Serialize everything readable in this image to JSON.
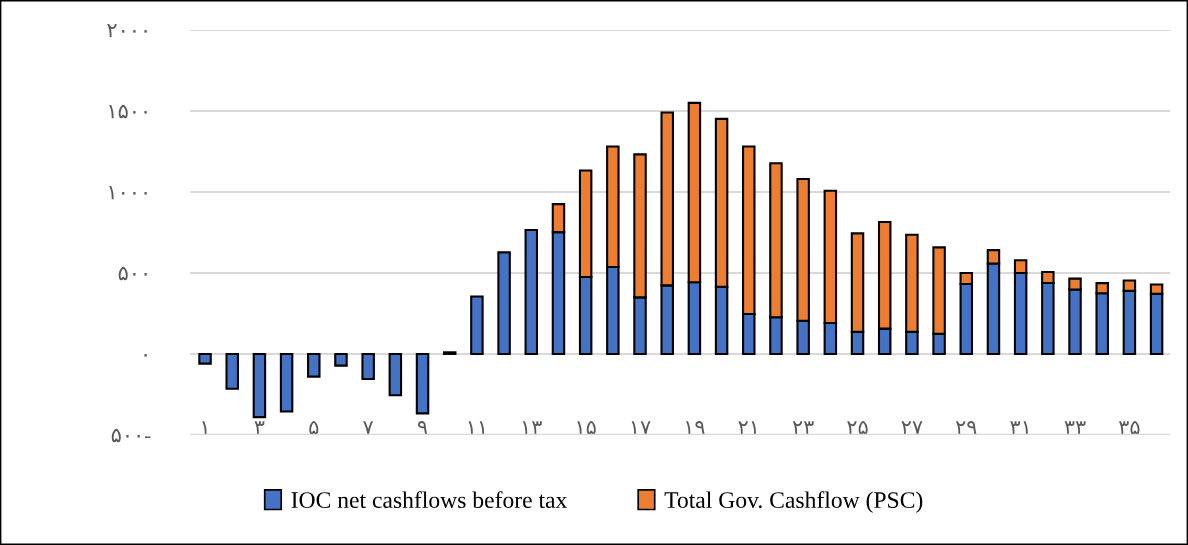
{
  "chart_data": {
    "type": "bar",
    "stacked": true,
    "categories": [
      "۱",
      null,
      "۳",
      null,
      "۵",
      null,
      "۷",
      null,
      "۹",
      null,
      "۱۱",
      null,
      "۱۳",
      null,
      "۱۵",
      null,
      "۱۷",
      null,
      "۱۹",
      null,
      "۲۱",
      null,
      "۲۳",
      null,
      "۲۵",
      null,
      "۲۷",
      null,
      "۲۹",
      null,
      "۳۱",
      null,
      "۳۳",
      null,
      "۳۵",
      null
    ],
    "series": [
      {
        "name": "IOC net cashflows before tax",
        "color": "#4472c4",
        "values": [
          -60,
          -215,
          -390,
          -355,
          -140,
          -72,
          -155,
          -255,
          -367,
          10,
          355,
          627,
          765,
          752,
          475,
          537,
          349,
          423,
          443,
          414,
          246,
          226,
          205,
          191,
          137,
          156,
          137,
          125,
          432,
          558,
          500,
          438,
          398,
          375,
          389,
          371
        ]
      },
      {
        "name": "Total Gov. Cashflow (PSC)",
        "color": "#ed7d31",
        "values": [
          null,
          null,
          null,
          null,
          null,
          null,
          null,
          null,
          null,
          null,
          null,
          null,
          null,
          173,
          657,
          744,
          883,
          1067,
          1107,
          1037,
          1035,
          951,
          875,
          816,
          607,
          658,
          599,
          533,
          68,
          83,
          78,
          68,
          67,
          62,
          64,
          58
        ]
      }
    ],
    "ylim": [
      -500,
      2000
    ],
    "yticks": [
      {
        "value": -500,
        "label": "۵۰۰-"
      },
      {
        "value": 0,
        "label": "۰"
      },
      {
        "value": 500,
        "label": "۵۰۰"
      },
      {
        "value": 1000,
        "label": "۱۰۰۰"
      },
      {
        "value": 1500,
        "label": "۱۵۰۰"
      },
      {
        "value": 2000,
        "label": "۲۰۰۰"
      }
    ],
    "grid": "y",
    "legend": "bottom"
  }
}
